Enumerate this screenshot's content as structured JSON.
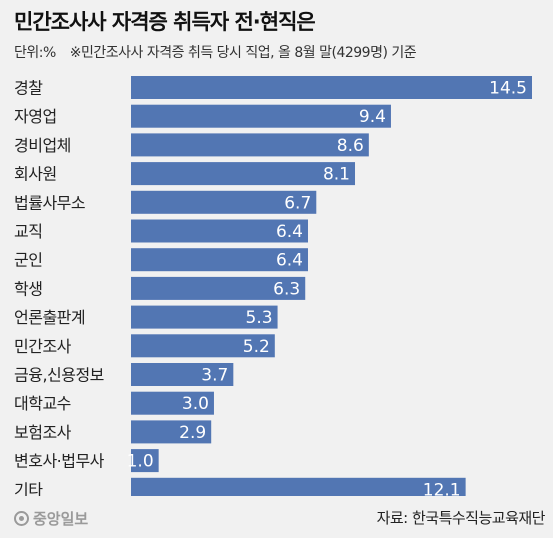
{
  "header": {
    "title": "민간조사사 자격증 취득자 전·현직은",
    "unit": "단위:%",
    "note": "※민간조사사 자격증 취득 당시 직업, 올 8월 말(4299명) 기준"
  },
  "footer": {
    "logo": "중앙일보",
    "source": "자료: 한국특수직능교육재단"
  },
  "colors": {
    "bar": "#5276b3",
    "bar_stroke": "#ffffff",
    "value_text": "#ffffff",
    "label_text": "#222222",
    "background": "#f1f1f1"
  },
  "chart_data": {
    "type": "bar",
    "orientation": "horizontal",
    "categories": [
      "경찰",
      "자영업",
      "경비업체",
      "회사원",
      "법률사무소",
      "교직",
      "군인",
      "학생",
      "언론출판계",
      "민간조사",
      "금융,신용정보",
      "대학교수",
      "보험조사",
      "변호사·법무사",
      "기타"
    ],
    "values": [
      14.5,
      9.4,
      8.6,
      8.1,
      6.7,
      6.4,
      6.4,
      6.3,
      5.3,
      5.2,
      3.7,
      3.0,
      2.9,
      1.0,
      12.1
    ],
    "value_labels": [
      "14.5",
      "9.4",
      "8.6",
      "8.1",
      "6.7",
      "6.4",
      "6.4",
      "6.3",
      "5.3",
      "5.2",
      "3.7",
      "3.0",
      "2.9",
      "1.0",
      "12.1"
    ],
    "xlim": [
      0,
      14.5
    ],
    "title": "민간조사사 자격증 취득자 전·현직은",
    "xlabel": "",
    "ylabel": "",
    "grid": false,
    "legend": "none"
  }
}
